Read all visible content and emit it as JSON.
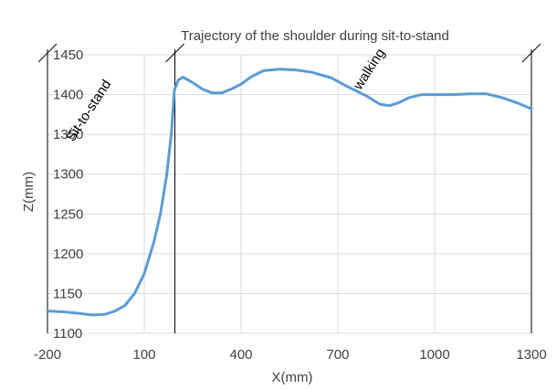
{
  "chart_data": {
    "type": "line",
    "title": "Trajectory of the shoulder during sit-to-stand",
    "xlabel": "X(mm)",
    "ylabel": "Z(mm)",
    "xlim": [
      -200,
      1300
    ],
    "ylim": [
      1100,
      1450
    ],
    "xticks": [
      -200,
      100,
      400,
      700,
      1000,
      1300
    ],
    "yticks": [
      1100,
      1150,
      1200,
      1250,
      1300,
      1350,
      1400,
      1450
    ],
    "grid": true,
    "series": [
      {
        "color": "#5b9bd5",
        "points": [
          [
            -200,
            1128
          ],
          [
            -150,
            1127
          ],
          [
            -100,
            1125
          ],
          [
            -60,
            1123
          ],
          [
            -20,
            1124
          ],
          [
            10,
            1128
          ],
          [
            40,
            1135
          ],
          [
            70,
            1150
          ],
          [
            100,
            1175
          ],
          [
            130,
            1215
          ],
          [
            150,
            1250
          ],
          [
            170,
            1300
          ],
          [
            185,
            1355
          ],
          [
            193,
            1405
          ],
          [
            205,
            1418
          ],
          [
            220,
            1422
          ],
          [
            250,
            1415
          ],
          [
            280,
            1407
          ],
          [
            310,
            1402
          ],
          [
            340,
            1402
          ],
          [
            370,
            1407
          ],
          [
            400,
            1413
          ],
          [
            430,
            1422
          ],
          [
            470,
            1430
          ],
          [
            520,
            1432
          ],
          [
            570,
            1431
          ],
          [
            620,
            1428
          ],
          [
            680,
            1421
          ],
          [
            730,
            1410
          ],
          [
            790,
            1398
          ],
          [
            830,
            1388
          ],
          [
            860,
            1386
          ],
          [
            890,
            1390
          ],
          [
            920,
            1396
          ],
          [
            960,
            1400
          ],
          [
            1010,
            1400
          ],
          [
            1060,
            1400
          ],
          [
            1110,
            1401
          ],
          [
            1160,
            1401
          ],
          [
            1210,
            1396
          ],
          [
            1260,
            1389
          ],
          [
            1300,
            1382
          ]
        ]
      }
    ],
    "annotations": [
      {
        "text": "Sit-to-stand",
        "x": -120,
        "y": 1340
      },
      {
        "text": "walking",
        "x": 770,
        "y": 1405
      }
    ],
    "vertical_markers": [
      -200,
      195,
      1300
    ]
  }
}
